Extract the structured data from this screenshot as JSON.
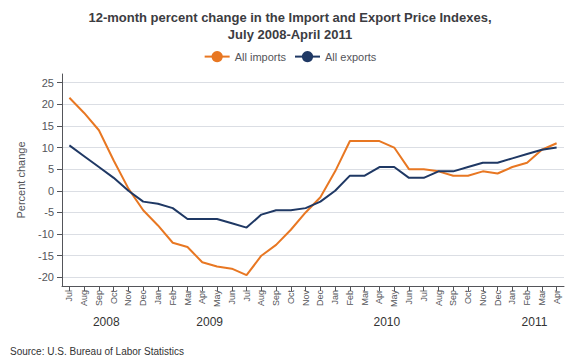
{
  "chart_data": {
    "type": "line",
    "title": "12-month percent change in the Import and Export Price Indexes,\nJuly 2008-April 2011",
    "ylabel": "Percent change",
    "source": "Source: U.S. Bureau of Labor Statistics",
    "categories": [
      "Jul",
      "Aug",
      "Sep",
      "Oct",
      "Nov",
      "Dec",
      "Jan",
      "Feb",
      "Mar",
      "Apr",
      "May",
      "Jun",
      "Jul",
      "Aug",
      "Sep",
      "Oct",
      "Nov",
      "Dec",
      "Jan",
      "Feb",
      "Mar",
      "Apr",
      "May",
      "Jun",
      "Jul",
      "Aug",
      "Sep",
      "Oct",
      "Nov",
      "Dec",
      "Jan",
      "Feb",
      "Mar",
      "Apr"
    ],
    "series": [
      {
        "name": "All imports",
        "color": "#E87722",
        "values": [
          21.5,
          18.0,
          14.0,
          7.0,
          0.5,
          -4.5,
          -8.0,
          -12.0,
          -13.0,
          -16.5,
          -17.5,
          -18.0,
          -19.5,
          -15.0,
          -12.5,
          -9.0,
          -5.0,
          -1.5,
          4.5,
          11.5,
          11.5,
          11.5,
          10.0,
          5.0,
          5.0,
          4.5,
          3.5,
          3.5,
          4.5,
          4.0,
          5.5,
          6.5,
          9.5,
          11.0
        ]
      },
      {
        "name": "All exports",
        "color": "#1F3864",
        "values": [
          10.5,
          8.0,
          5.5,
          3.0,
          0.0,
          -2.5,
          -3.0,
          -4.0,
          -6.5,
          -6.5,
          -6.5,
          -7.5,
          -8.5,
          -5.5,
          -4.5,
          -4.5,
          -4.0,
          -2.5,
          0.0,
          3.5,
          3.5,
          5.5,
          5.5,
          3.0,
          3.0,
          4.5,
          4.5,
          5.5,
          6.5,
          6.5,
          7.5,
          8.5,
          9.5,
          10.0
        ]
      }
    ],
    "annotations": [
      {
        "text": "2008",
        "x": 2.5
      },
      {
        "text": "2009",
        "x": 9.5
      },
      {
        "text": "2010",
        "x": 21.5
      },
      {
        "text": "2011",
        "x": 31.5
      }
    ],
    "ylim": [
      -22,
      27
    ],
    "yticks": [
      -20,
      -15,
      -10,
      -5,
      0,
      5,
      10,
      15,
      20,
      25
    ],
    "grid": true,
    "legend": "top"
  }
}
